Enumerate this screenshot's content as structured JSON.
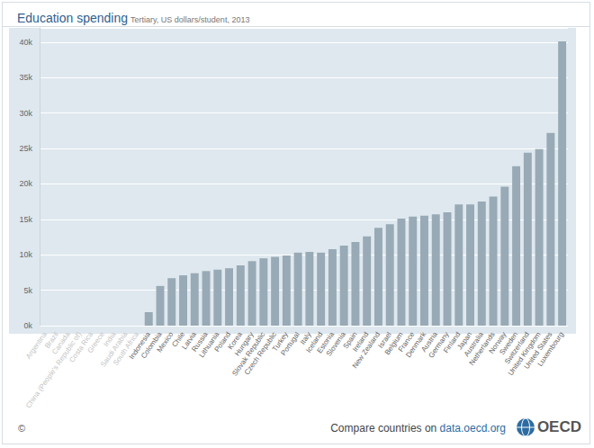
{
  "chart_data": {
    "type": "bar",
    "title": "Education spending",
    "subtitle": "Tertiary, US dollars/student, 2013",
    "categories": [
      "Argentina",
      "Brazil",
      "Canada",
      "China (People's Republic of)",
      "Costa Rica",
      "Greece",
      "India",
      "Saudi Arabia",
      "South Africa",
      "Indonesia",
      "Colombia",
      "Mexico",
      "Chile",
      "Latvia",
      "Russia",
      "Lithuania",
      "Poland",
      "Korea",
      "Hungary",
      "Slovak Republic",
      "Czech Republic",
      "Turkey",
      "Portugal",
      "Italy",
      "Iceland",
      "Estonia",
      "Slovenia",
      "Spain",
      "Ireland",
      "New Zealand",
      "Israel",
      "Belgium",
      "France",
      "Denmark",
      "Austria",
      "Germany",
      "Finland",
      "Japan",
      "Australia",
      "Netherlands",
      "Norway",
      "Sweden",
      "Switzerland",
      "United Kingdom",
      "United States",
      "Luxembourg"
    ],
    "values": [
      null,
      null,
      null,
      null,
      null,
      null,
      null,
      null,
      null,
      1900,
      5600,
      6700,
      7100,
      7400,
      7700,
      7900,
      8100,
      8500,
      9100,
      9500,
      9700,
      9900,
      10300,
      10400,
      10300,
      10800,
      11300,
      11800,
      12600,
      13800,
      14300,
      15100,
      15400,
      15500,
      15700,
      16000,
      17100,
      17100,
      17500,
      18200,
      19600,
      22500,
      24400,
      24900,
      27200,
      40100
    ],
    "color": "#98aab5",
    "ylim": [
      0,
      42000
    ],
    "yticks": [
      {
        "value": 0,
        "label": "0k"
      },
      {
        "value": 5000,
        "label": "5k"
      },
      {
        "value": 10000,
        "label": "10k"
      },
      {
        "value": 15000,
        "label": "15k"
      },
      {
        "value": 20000,
        "label": "20k"
      },
      {
        "value": 25000,
        "label": "25k"
      },
      {
        "value": 30000,
        "label": "30k"
      },
      {
        "value": 35000,
        "label": "35k"
      },
      {
        "value": 40000,
        "label": "40k"
      }
    ],
    "grid": true
  },
  "footer": {
    "copyright": "©",
    "compare_text": "Compare countries on",
    "link": "data.oecd.org",
    "logo": "OECD"
  }
}
